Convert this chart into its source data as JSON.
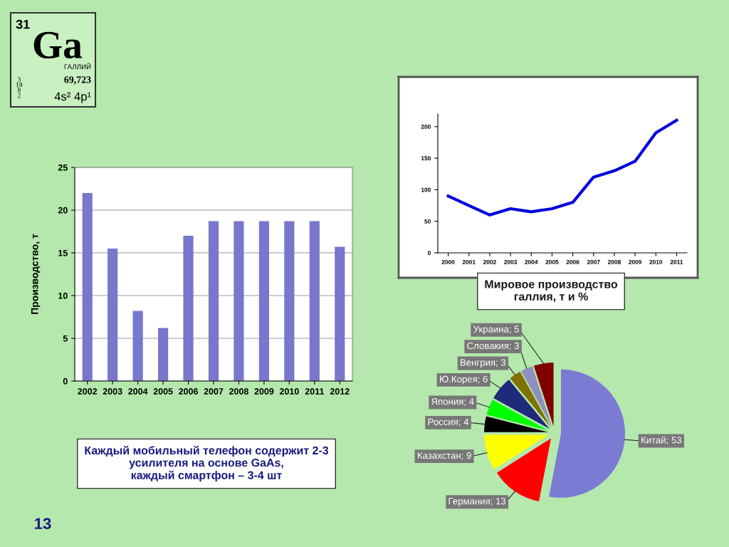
{
  "chart_data": [
    {
      "type": "other",
      "annotations": [
        "31",
        "Ga",
        "ГАЛЛИЙ",
        "69,723",
        "3\n18\n8\n2",
        "4s² 4p¹"
      ]
    },
    {
      "type": "bar",
      "ylabel": "Производство, т",
      "categories": [
        "2002",
        "2003",
        "2004",
        "2005",
        "2006",
        "2007",
        "2008",
        "2009",
        "2010",
        "2011",
        "2012"
      ],
      "values": [
        22,
        15.5,
        8.2,
        6.2,
        17,
        18.7,
        18.7,
        18.7,
        18.7,
        18.7,
        15.7
      ],
      "color": "#7777cc",
      "ylim": [
        0,
        25
      ],
      "yticks": [
        0,
        5,
        10,
        15,
        20,
        25
      ],
      "grid": "y",
      "annotations": [
        "Каждый мобильный телефон содержит 2-3\nусилителя на основе GaAs,\nкаждый смартфон – 3-4 шт",
        "13"
      ]
    },
    {
      "type": "line",
      "categories": [
        "2000",
        "2001",
        "2002",
        "2003",
        "2004",
        "2005",
        "2006",
        "2007",
        "2008",
        "2009",
        "2010",
        "2011"
      ],
      "values": [
        90,
        75,
        60,
        70,
        65,
        70,
        80,
        120,
        130,
        145,
        190,
        210
      ],
      "color": "#0000dd",
      "ylim": [
        0,
        220
      ],
      "yticks": [
        0,
        50,
        100,
        150,
        200
      ],
      "grid": false,
      "marker": "none",
      "line_style": "solid",
      "annotations": [
        "Мировое производство\nгаллия, т и %"
      ]
    },
    {
      "type": "pie",
      "categories": [
        "Китай; 53",
        "Германия; 13",
        "Казахстан; 9",
        "Россия; 4",
        "Япония; 4",
        "Ю.Корея; 6",
        "Венгрия; 3",
        "Словакия; 3",
        "Украина; 5"
      ],
      "values": [
        53,
        13,
        9,
        4,
        4,
        6,
        3,
        3,
        5
      ],
      "colors": [
        "#7b7bd4",
        "#ff0000",
        "#ffff00",
        "#000000",
        "#00ff00",
        "#1f2a7a",
        "#807000",
        "#8f8fc0",
        "#800000"
      ]
    }
  ]
}
